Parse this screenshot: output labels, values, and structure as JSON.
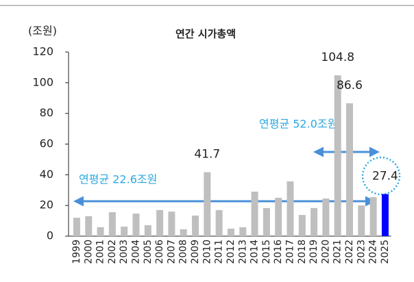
{
  "chart_data": {
    "type": "bar",
    "title": "연간 시가총액",
    "y_unit_label": "(조원)",
    "categories": [
      "1999",
      "2000",
      "2001",
      "2002",
      "2003",
      "2004",
      "2005",
      "2006",
      "2007",
      "2008",
      "2009",
      "2010",
      "2011",
      "2012",
      "2013",
      "2014",
      "2015",
      "2016",
      "2017",
      "2018",
      "2019",
      "2020",
      "2021",
      "2022",
      "2023",
      "2024",
      "2025"
    ],
    "values": [
      12.0,
      13.0,
      5.8,
      15.6,
      6.2,
      14.7,
      7.1,
      17.0,
      16.0,
      4.5,
      13.4,
      41.7,
      17.0,
      4.9,
      5.8,
      29.0,
      18.3,
      25.0,
      35.7,
      13.8,
      18.3,
      24.5,
      104.8,
      86.6,
      20.0,
      25.4,
      27.4
    ],
    "value_labels": [
      null,
      null,
      null,
      null,
      null,
      null,
      null,
      null,
      null,
      null,
      null,
      "41.7",
      null,
      null,
      null,
      null,
      null,
      null,
      null,
      null,
      null,
      null,
      "104.8",
      "86.6",
      null,
      null,
      "27.4"
    ],
    "colors": [
      "#bfbfbf",
      "#bfbfbf",
      "#bfbfbf",
      "#bfbfbf",
      "#bfbfbf",
      "#bfbfbf",
      "#bfbfbf",
      "#bfbfbf",
      "#bfbfbf",
      "#bfbfbf",
      "#bfbfbf",
      "#bfbfbf",
      "#bfbfbf",
      "#bfbfbf",
      "#bfbfbf",
      "#bfbfbf",
      "#bfbfbf",
      "#bfbfbf",
      "#bfbfbf",
      "#bfbfbf",
      "#bfbfbf",
      "#bfbfbf",
      "#bfbfbf",
      "#bfbfbf",
      "#bfbfbf",
      "#bfbfbf",
      "#0000ff"
    ],
    "ylim": [
      0,
      120
    ],
    "yticks": [
      0,
      20,
      40,
      60,
      80,
      100,
      120
    ],
    "annotations": [
      {
        "text": "연평균 22.6조원"
      },
      {
        "text": "연평균 52.0조원"
      }
    ]
  }
}
